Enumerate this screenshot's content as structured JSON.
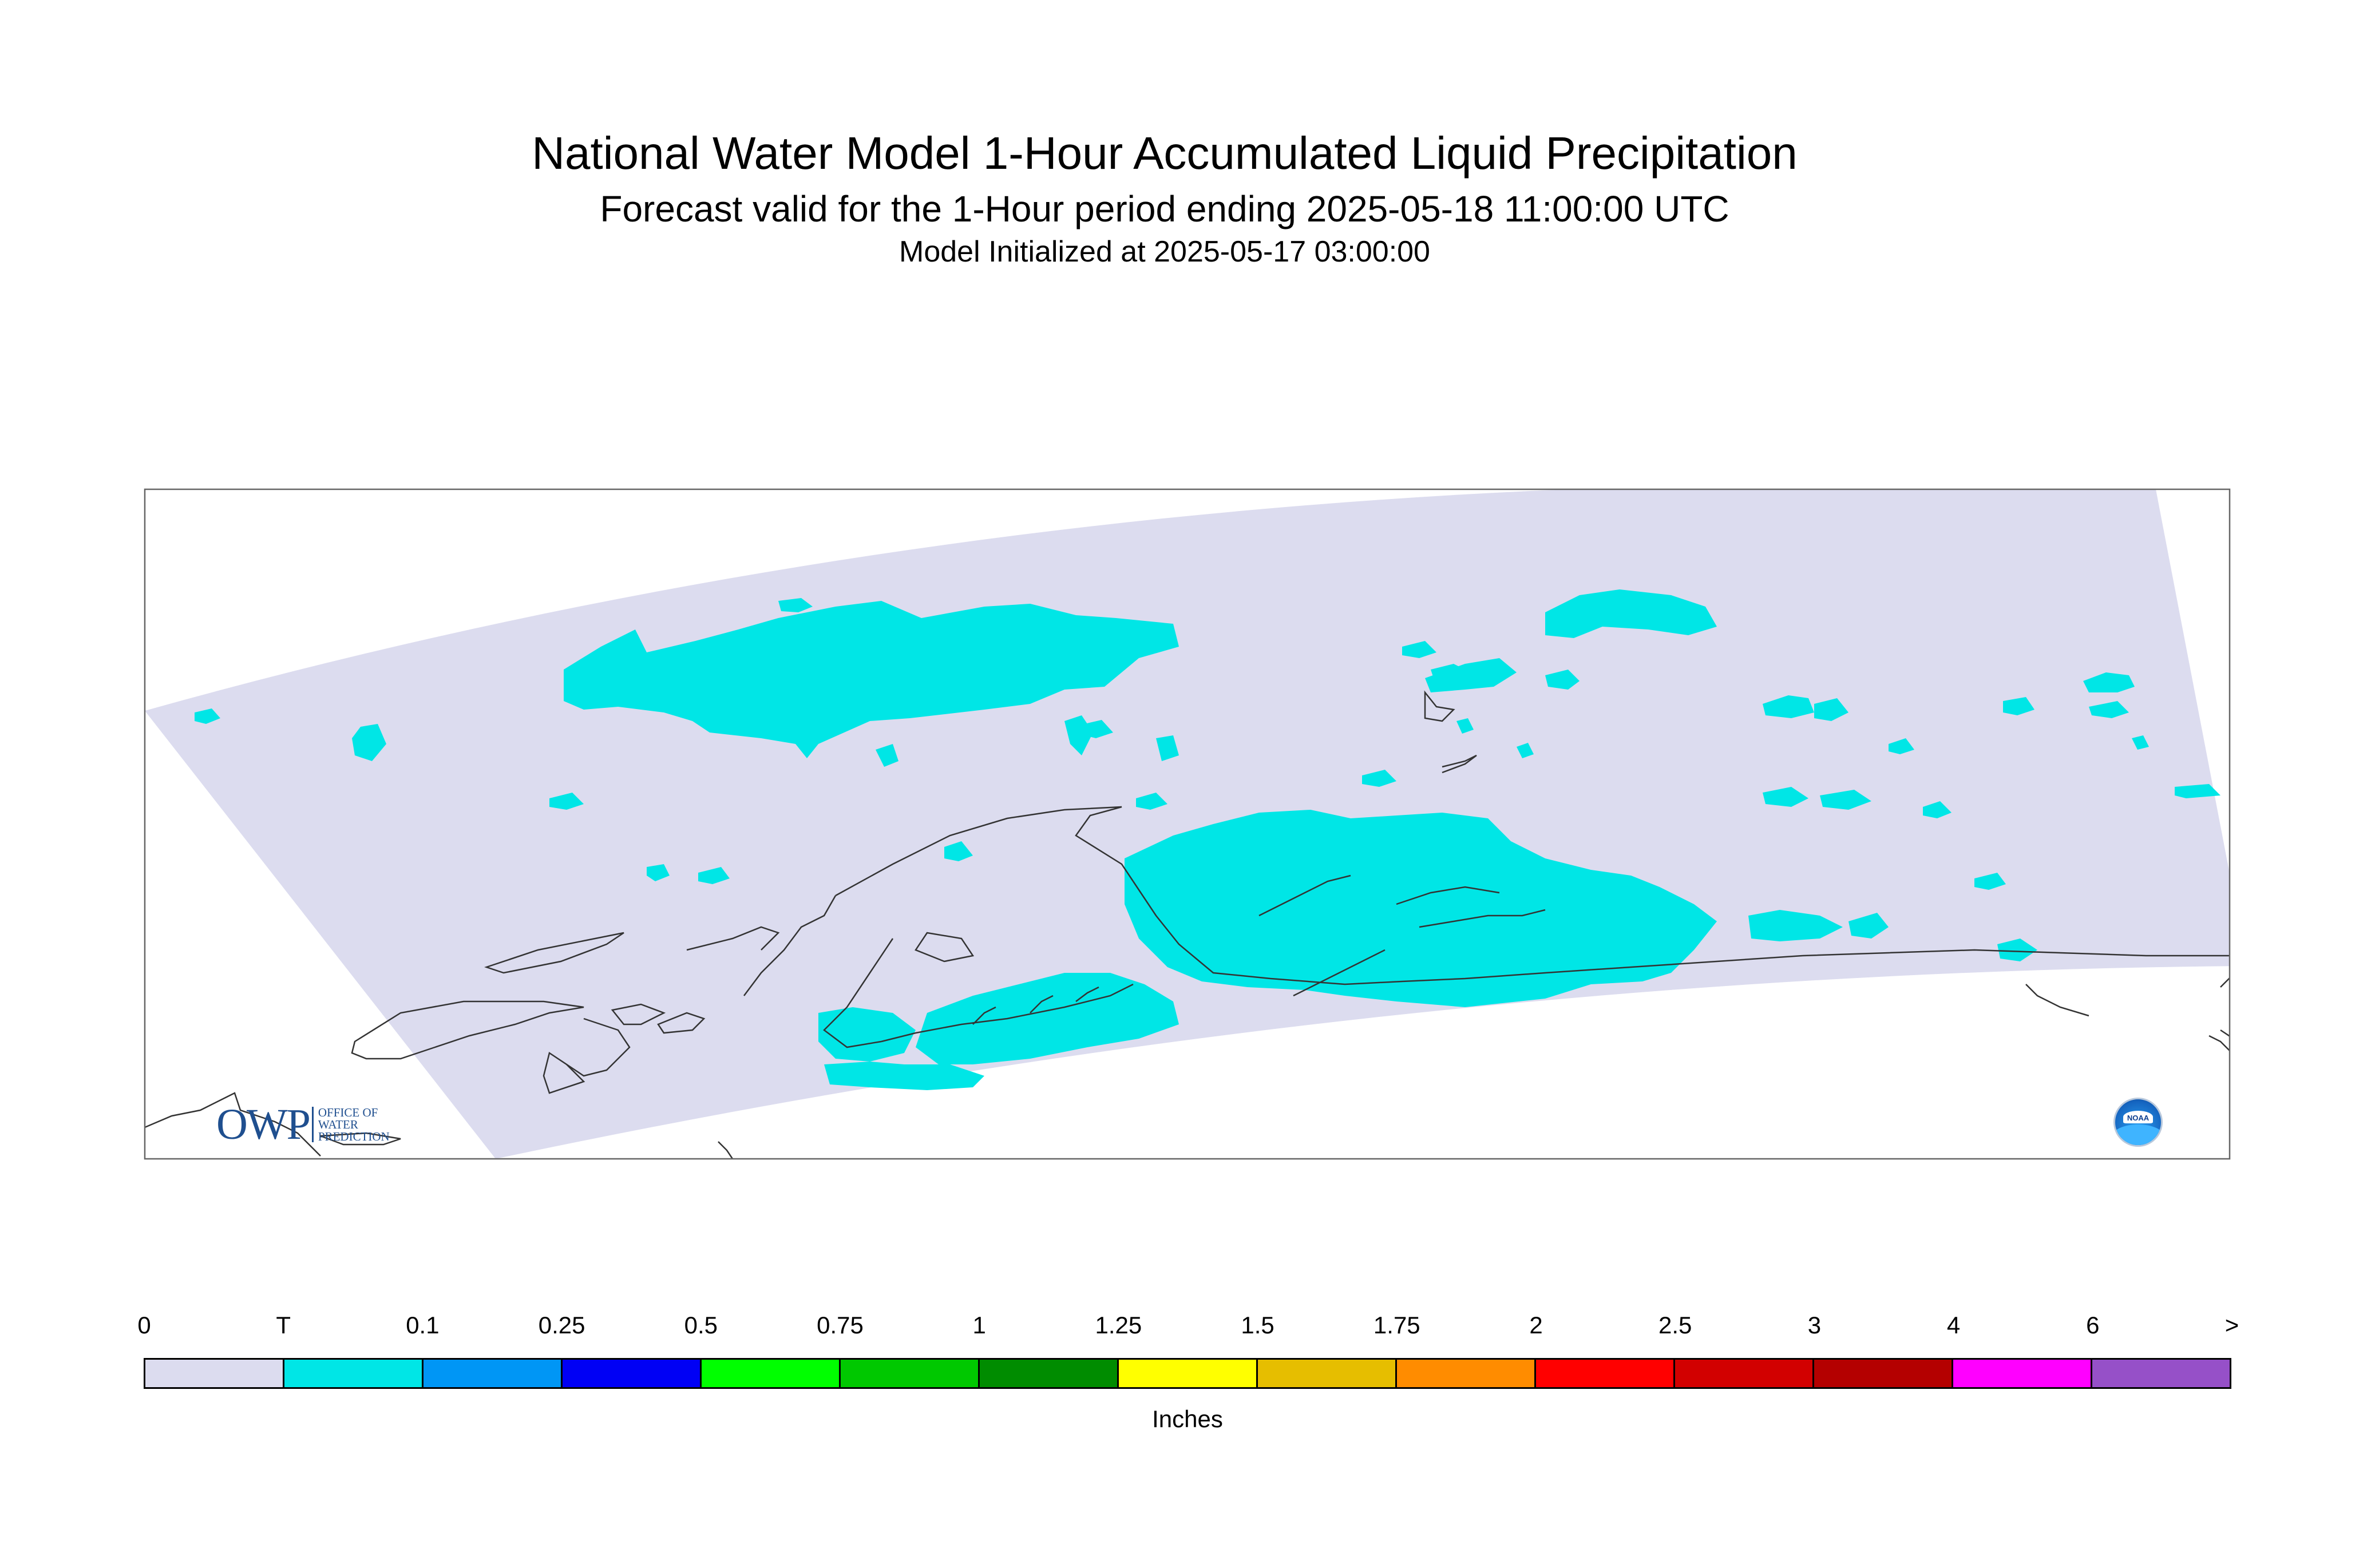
{
  "header": {
    "title": "National Water Model 1-Hour Accumulated Liquid Precipitation",
    "subtitle": "Forecast valid for the 1-Hour period ending 2025-05-18 11:00:00 UTC",
    "init_line": "Model Initialized at 2025-05-17 03:00:00"
  },
  "map": {
    "domain_fill": "#dcdcef",
    "precip_fill": "#00e6e6",
    "coast_color": "#333333",
    "precip_category": "T"
  },
  "logos": {
    "owp": {
      "letters": "OWP",
      "lines": [
        "OFFICE OF",
        "WATER",
        "PREDICTION"
      ]
    },
    "noaa": {
      "text": "NOAA"
    }
  },
  "legend": {
    "labels": [
      "0",
      "T",
      "0.1",
      "0.25",
      "0.5",
      "0.75",
      "1",
      "1.25",
      "1.5",
      "1.75",
      "2",
      "2.5",
      "3",
      "4",
      "6",
      ">"
    ],
    "colors": [
      "#dcdcef",
      "#00e6e6",
      "#0096f5",
      "#0000f5",
      "#00ff00",
      "#00c800",
      "#008c00",
      "#ffff00",
      "#e6be00",
      "#ff8c00",
      "#ff0000",
      "#d20000",
      "#b40000",
      "#ff00ff",
      "#9650c8"
    ],
    "units": "Inches"
  }
}
